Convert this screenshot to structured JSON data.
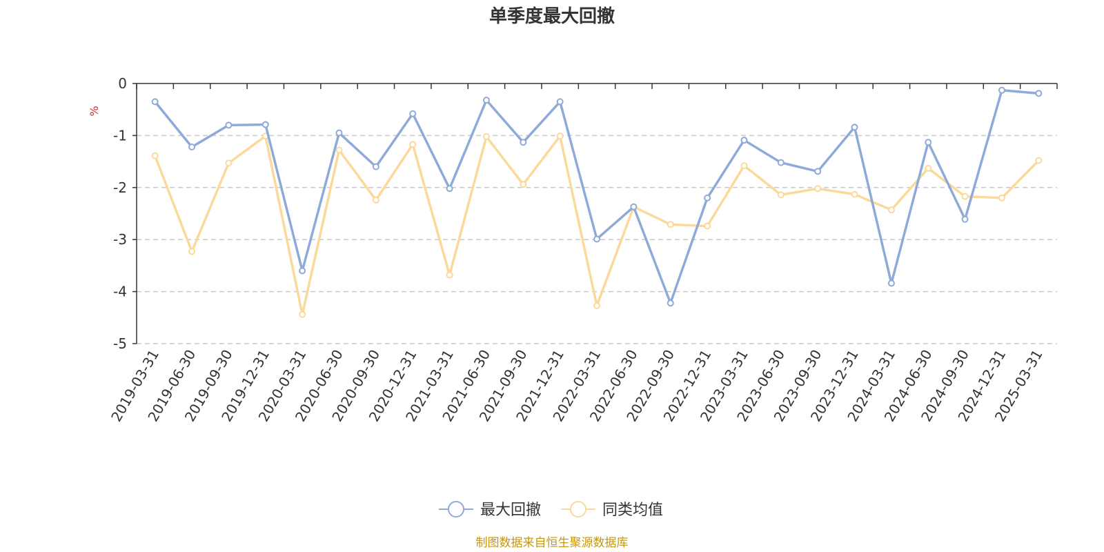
{
  "chart_data": {
    "type": "line",
    "title": "单季度最大回撤",
    "ylabel": "%",
    "ylim": [
      -5,
      0
    ],
    "yticks": [
      "0",
      "-1",
      "-2",
      "-3",
      "-4",
      "-5"
    ],
    "grid": true,
    "legend_position": "bottom-center",
    "categories": [
      "2019-03-31",
      "2019-06-30",
      "2019-09-30",
      "2019-12-31",
      "2020-03-31",
      "2020-06-30",
      "2020-09-30",
      "2020-12-31",
      "2021-03-31",
      "2021-06-30",
      "2021-09-30",
      "2021-12-31",
      "2022-03-31",
      "2022-06-30",
      "2022-09-30",
      "2022-12-31",
      "2023-03-31",
      "2023-06-30",
      "2023-09-30",
      "2023-12-31",
      "2024-03-31",
      "2024-06-30",
      "2024-09-30",
      "2024-12-31",
      "2025-03-31"
    ],
    "series": [
      {
        "name": "最大回撤",
        "color": "#8eaad8",
        "values": [
          -0.35,
          -1.22,
          -0.8,
          -0.79,
          -3.6,
          -0.95,
          -1.6,
          -0.58,
          -2.02,
          -0.32,
          -1.13,
          -0.35,
          -2.99,
          -2.37,
          -4.22,
          -2.2,
          -1.09,
          -1.52,
          -1.69,
          -0.84,
          -3.84,
          -1.13,
          -2.61,
          -0.13,
          -0.19
        ]
      },
      {
        "name": "同类均值",
        "color": "#fbd99a",
        "values": [
          -1.39,
          -3.23,
          -1.53,
          -1.01,
          -4.44,
          -1.28,
          -2.24,
          -1.17,
          -3.68,
          -1.02,
          -1.94,
          -1.01,
          -4.27,
          -2.37,
          -2.71,
          -2.74,
          -1.58,
          -2.14,
          -2.02,
          -2.13,
          -2.43,
          -1.63,
          -2.17,
          -2.2,
          -1.48
        ]
      }
    ],
    "source": "制图数据来自恒生聚源数据库",
    "source_color": "#c8960c",
    "unit_color": "#d9282f"
  }
}
